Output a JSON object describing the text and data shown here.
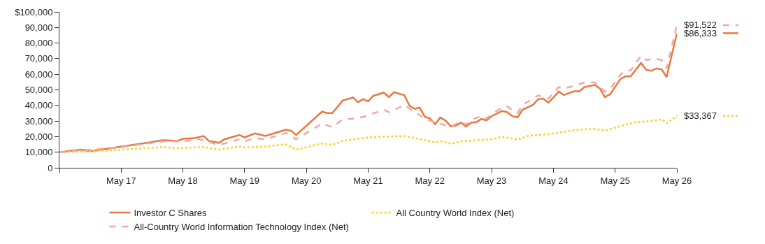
{
  "chart_data": {
    "type": "line",
    "xlim": [
      "2016-05",
      "2026-05"
    ],
    "xticks": [
      {
        "value": "2016-05",
        "label": null
      },
      {
        "value": "2017-05",
        "label": "May 17"
      },
      {
        "value": "2018-05",
        "label": "May 18"
      },
      {
        "value": "2019-05",
        "label": "May 19"
      },
      {
        "value": "2020-05",
        "label": "May 20"
      },
      {
        "value": "2021-05",
        "label": "May 21"
      },
      {
        "value": "2022-05",
        "label": "May 22"
      },
      {
        "value": "2023-05",
        "label": "May 23"
      },
      {
        "value": "2024-05",
        "label": "May 24"
      },
      {
        "value": "2025-05",
        "label": "May 25"
      },
      {
        "value": "2026-05",
        "label": "May 26"
      }
    ],
    "ylim": [
      0,
      100000
    ],
    "yticks": [
      0,
      {
        "value": 10000,
        "label": "10,000"
      },
      {
        "value": 20000,
        "label": "20,000"
      },
      {
        "value": 30000,
        "label": "30,000"
      },
      {
        "value": 40000,
        "label": "40,000"
      },
      {
        "value": 50000,
        "label": "50,000"
      },
      {
        "value": 60000,
        "label": "60,000"
      },
      {
        "value": 70000,
        "label": "70,000"
      },
      {
        "value": 80000,
        "label": "80,000"
      },
      {
        "value": 90000,
        "label": "90,000"
      },
      {
        "value": 100000,
        "label": "$100,000"
      }
    ],
    "legend": "bottom",
    "marker": "none",
    "series": [
      {
        "name": "Investor C Shares",
        "color": "#e8793e",
        "line_style": "solid",
        "x": [
          "2016-05",
          "2016-09",
          "2016-11",
          "2017-05",
          "2017-10",
          "2018-01",
          "2018-04",
          "2018-05",
          "2018-07",
          "2018-09",
          "2018-10",
          "2018-12",
          "2019-01",
          "2019-04",
          "2019-05",
          "2019-07",
          "2019-09",
          "2020-01",
          "2020-02",
          "2020-03",
          "2020-08",
          "2020-09",
          "2020-10",
          "2020-12",
          "2021-02",
          "2021-03",
          "2021-04",
          "2021-05",
          "2021-06",
          "2021-08",
          "2021-09",
          "2021-10",
          "2021-12",
          "2022-01",
          "2022-02",
          "2022-03",
          "2022-04",
          "2022-05",
          "2022-06",
          "2022-07",
          "2022-08",
          "2022-09",
          "2022-10",
          "2022-11",
          "2022-12",
          "2023-01",
          "2023-02",
          "2023-03",
          "2023-04",
          "2023-05",
          "2023-07",
          "2023-08",
          "2023-09",
          "2023-10",
          "2023-11",
          "2024-01",
          "2024-02",
          "2024-03",
          "2024-04",
          "2024-05",
          "2024-06",
          "2024-07",
          "2024-09",
          "2024-10",
          "2024-11",
          "2025-01",
          "2025-02",
          "2025-03",
          "2025-04",
          "2025-06",
          "2025-07",
          "2025-08",
          "2025-10",
          "2025-11",
          "2025-12",
          "2026-01",
          "2026-02",
          "2026-03",
          "2026-05"
        ],
        "values": [
          10000,
          11600,
          10600,
          13600,
          16000,
          17700,
          17300,
          18600,
          18900,
          20400,
          17300,
          16000,
          18300,
          21000,
          19500,
          22100,
          20400,
          24400,
          23700,
          21000,
          36000,
          35100,
          35100,
          43100,
          45100,
          42100,
          44000,
          42700,
          46200,
          48200,
          45400,
          48500,
          46500,
          39800,
          37800,
          38700,
          32800,
          31700,
          28000,
          32200,
          30400,
          26600,
          27000,
          29000,
          26400,
          29000,
          29300,
          31300,
          30400,
          33100,
          36400,
          35700,
          33100,
          32400,
          37300,
          40400,
          44000,
          44400,
          41800,
          45100,
          48900,
          46700,
          49100,
          49100,
          51800,
          53100,
          50700,
          45400,
          47100,
          57000,
          58600,
          58700,
          67200,
          62800,
          62200,
          63800,
          63000,
          58200,
          86333
        ]
      },
      {
        "name": "All Country World Index (Net)",
        "color": "#f5d327",
        "line_style": "dotted",
        "x": [
          "2016-05",
          "2016-09",
          "2016-11",
          "2017-05",
          "2018-01",
          "2018-04",
          "2018-09",
          "2018-12",
          "2019-04",
          "2019-05",
          "2019-09",
          "2020-01",
          "2020-03",
          "2020-08",
          "2020-10",
          "2020-12",
          "2021-05",
          "2021-08",
          "2021-12",
          "2022-02",
          "2022-04",
          "2022-06",
          "2022-07",
          "2022-09",
          "2022-11",
          "2023-05",
          "2023-07",
          "2023-10",
          "2023-12",
          "2024-05",
          "2024-09",
          "2024-11",
          "2025-01",
          "2025-03",
          "2025-06",
          "2025-09",
          "2025-11",
          "2026-02",
          "2026-03",
          "2026-05"
        ],
        "values": [
          10000,
          10500,
          10500,
          11600,
          13300,
          12600,
          13300,
          11600,
          13700,
          13000,
          13700,
          15000,
          11600,
          15700,
          14700,
          17300,
          19400,
          19900,
          20400,
          19000,
          17700,
          16300,
          17300,
          15400,
          17000,
          18300,
          19900,
          18100,
          20400,
          22000,
          24100,
          24600,
          25000,
          23800,
          26800,
          29300,
          29700,
          31000,
          28600,
          33367
        ]
      },
      {
        "name": "All-Country World Information Technology Index (Net)",
        "color": "#f0a8a8",
        "line_style": "dashed",
        "x": [
          "2016-05",
          "2017-05",
          "2018-01",
          "2018-05",
          "2018-08",
          "2018-12",
          "2019-04",
          "2019-05",
          "2019-07",
          "2019-09",
          "2020-01",
          "2020-03",
          "2020-08",
          "2020-10",
          "2020-12",
          "2021-03",
          "2021-05",
          "2021-08",
          "2021-09",
          "2021-12",
          "2022-02",
          "2022-04",
          "2022-06",
          "2022-09",
          "2022-11",
          "2022-12",
          "2023-01",
          "2023-03",
          "2023-04",
          "2023-07",
          "2023-08",
          "2023-10",
          "2023-11",
          "2024-02",
          "2024-04",
          "2024-06",
          "2024-07",
          "2024-11",
          "2025-01",
          "2025-03",
          "2025-04",
          "2025-06",
          "2025-07",
          "2025-08",
          "2025-10",
          "2025-11",
          "2026-01",
          "2026-02",
          "2026-03",
          "2026-05"
        ],
        "values": [
          10000,
          13200,
          16900,
          16900,
          18500,
          14600,
          18300,
          17000,
          19000,
          18300,
          22400,
          18300,
          28400,
          26100,
          31000,
          31700,
          33700,
          37300,
          35700,
          40200,
          35700,
          31700,
          29000,
          26400,
          29700,
          27700,
          30600,
          33300,
          31700,
          38700,
          39400,
          35100,
          40400,
          46500,
          44400,
          51800,
          50700,
          54700,
          54700,
          48900,
          50500,
          59800,
          62500,
          62500,
          71900,
          69200,
          69900,
          69000,
          63900,
          91522
        ]
      }
    ],
    "annotations": [
      {
        "text": "$91,522",
        "x": "2026-05",
        "y": 91522
      },
      {
        "text": "$86,333",
        "x": "2026-05",
        "y": 86333
      },
      {
        "text": "$33,367",
        "x": "2026-05",
        "y": 33367
      }
    ]
  }
}
